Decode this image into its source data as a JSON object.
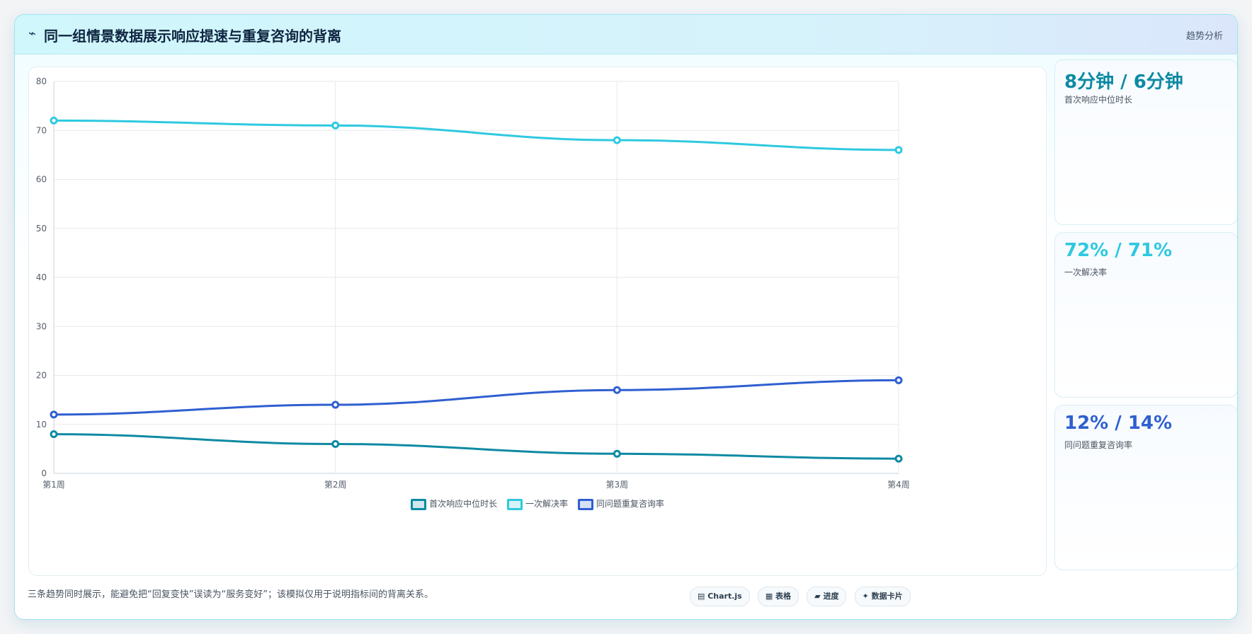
{
  "header": {
    "icon": "⌁",
    "title": "同一组情景数据展示响应提速与重复咨询的背离",
    "tag": "趋势分析"
  },
  "chart_data": {
    "type": "line",
    "categories": [
      "第1周",
      "第2周",
      "第3周",
      "第4周"
    ],
    "ylim": [
      0,
      80
    ],
    "yticks": [
      0,
      10,
      20,
      30,
      40,
      50,
      60,
      70,
      80
    ],
    "grid": true,
    "legend_position": "bottom",
    "series": [
      {
        "name": "首次响应中位时长",
        "values": [
          8,
          6,
          4,
          3
        ],
        "color": "#0e8aa3"
      },
      {
        "name": "一次解决率",
        "values": [
          72,
          71,
          68,
          66
        ],
        "color": "#2ec9e0"
      },
      {
        "name": "同问题重复咨询率",
        "values": [
          12,
          14,
          17,
          19
        ],
        "color": "#2f5fd0"
      }
    ]
  },
  "side_cards": [
    {
      "value": "8分钟 / 6分钟",
      "label": "首次响应中位时长",
      "color": "#0e8aa3"
    },
    {
      "value": "72% / 71%",
      "label": "一次解决率",
      "color": "#2ec9e0"
    },
    {
      "value": "12% / 14%",
      "label": "同问题重复咨询率",
      "color": "#2f5fd0"
    }
  ],
  "footer": {
    "note": "三条趋势同时展示，能避免把“回复变快”误读为“服务变好”；该模拟仅用于说明指标间的背离关系。",
    "chips": [
      "▤ Chart.js",
      "▦ 表格",
      "▰ 进度",
      "✦ 数据卡片"
    ]
  }
}
